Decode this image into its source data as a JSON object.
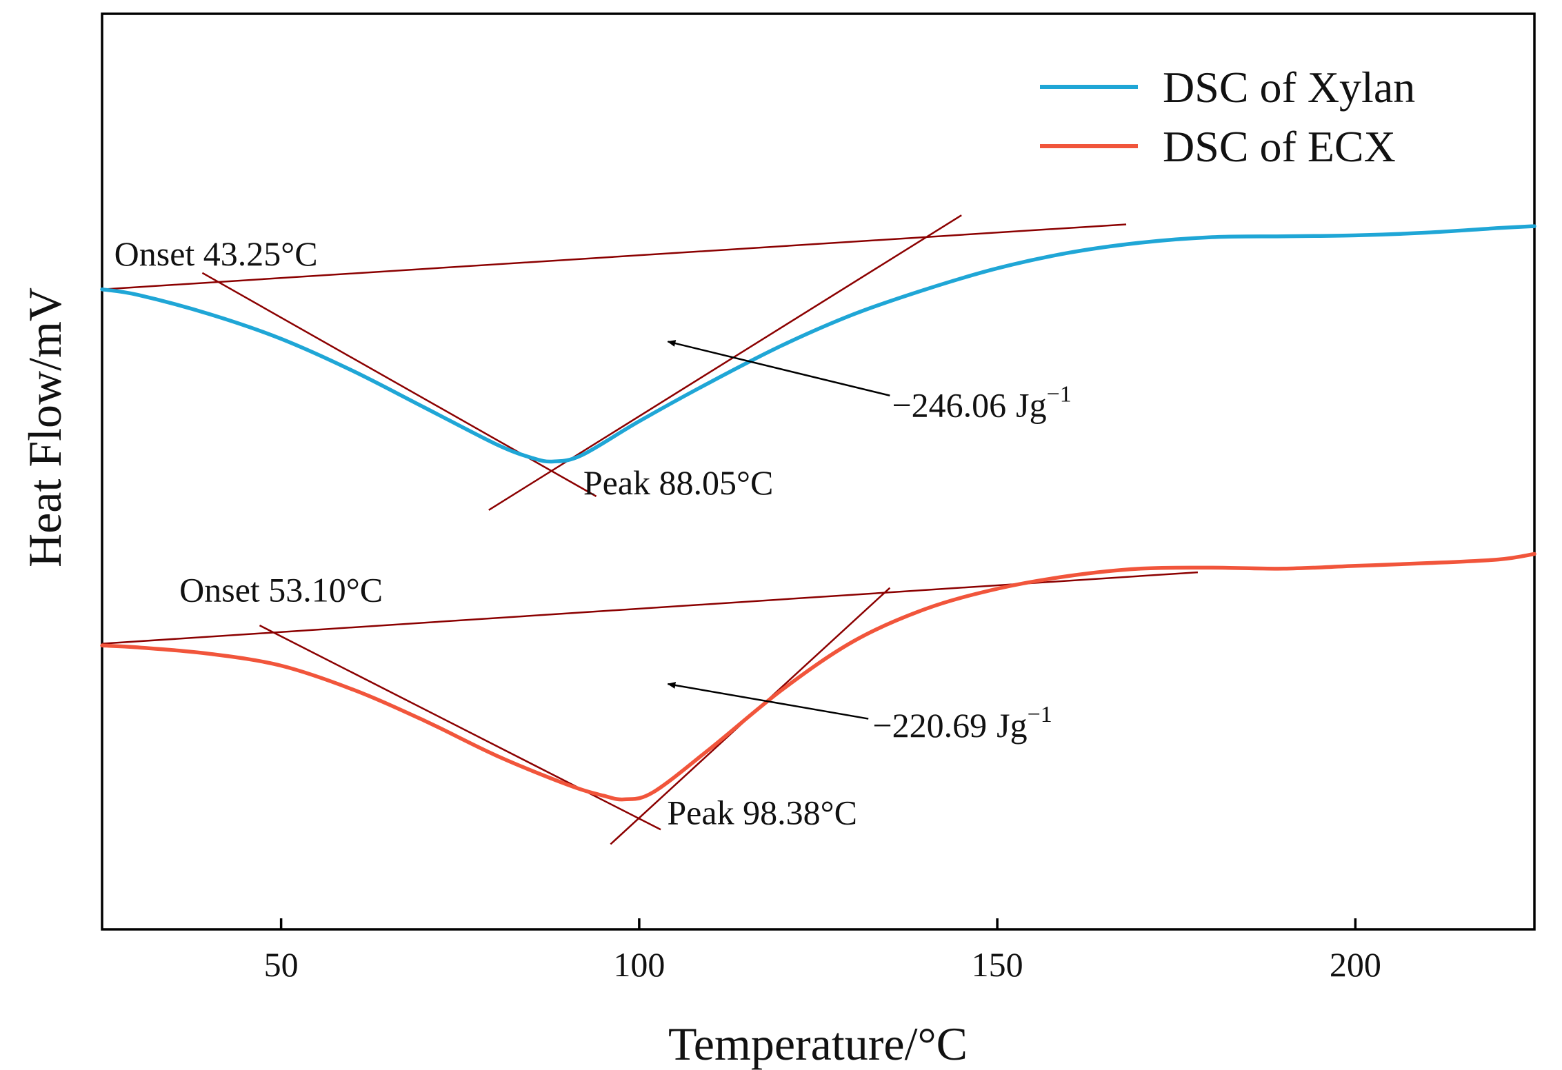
{
  "chart_data": {
    "type": "line",
    "title": "",
    "xlabel": "Temperature/°C",
    "ylabel": "Heat Flow/mV",
    "xlim": [
      25,
      225
    ],
    "ylim": [
      0,
      10
    ],
    "x_ticks": [
      {
        "value": 50,
        "label": "50"
      },
      {
        "value": 100,
        "label": "100"
      },
      {
        "value": 150,
        "label": "150"
      },
      {
        "value": 200,
        "label": "200"
      }
    ],
    "grid": false,
    "legend_position": "top-right",
    "series": [
      {
        "name": "DSC of Xylan",
        "color": "#1fa6d6",
        "x": [
          25,
          30,
          40,
          50,
          60,
          70,
          80,
          85,
          88,
          92,
          100,
          110,
          120,
          130,
          140,
          150,
          160,
          170,
          180,
          190,
          200,
          210,
          220,
          225
        ],
        "y": [
          6.99,
          6.93,
          6.72,
          6.45,
          6.1,
          5.7,
          5.3,
          5.15,
          5.11,
          5.18,
          5.55,
          5.98,
          6.38,
          6.72,
          6.99,
          7.22,
          7.39,
          7.5,
          7.56,
          7.57,
          7.58,
          7.61,
          7.66,
          7.68
        ]
      },
      {
        "name": "DSC of ECX",
        "color": "#f1553b",
        "x": [
          25,
          30,
          40,
          50,
          60,
          70,
          80,
          90,
          95,
          98,
          102,
          110,
          120,
          130,
          140,
          150,
          160,
          170,
          180,
          190,
          200,
          210,
          220,
          225
        ],
        "y": [
          3.1,
          3.08,
          3.01,
          2.88,
          2.62,
          2.28,
          1.9,
          1.58,
          1.46,
          1.42,
          1.5,
          1.98,
          2.62,
          3.15,
          3.5,
          3.72,
          3.86,
          3.94,
          3.95,
          3.94,
          3.97,
          4.0,
          4.04,
          4.1
        ]
      }
    ],
    "analysis_lines_color": "#8b0000",
    "analysis_lines": [
      {
        "name": "xylan-baseline",
        "x": [
          25,
          168
        ],
        "y": [
          6.99,
          7.7
        ]
      },
      {
        "name": "xylan-onset-tangent",
        "x": [
          39,
          94
        ],
        "y": [
          7.17,
          4.73
        ]
      },
      {
        "name": "xylan-peak-tangent",
        "x": [
          79,
          145
        ],
        "y": [
          4.58,
          7.8
        ]
      },
      {
        "name": "ecx-baseline",
        "x": [
          25,
          178
        ],
        "y": [
          3.12,
          3.9
        ]
      },
      {
        "name": "ecx-onset-tangent",
        "x": [
          47,
          103
        ],
        "y": [
          3.32,
          1.09
        ]
      },
      {
        "name": "ecx-peak-tangent",
        "x": [
          96,
          135
        ],
        "y": [
          0.93,
          3.73
        ]
      }
    ],
    "annotations": [
      {
        "name": "xylan-onset",
        "text": "Onset 43.25°C",
        "x": 26.7,
        "y": 7.25
      },
      {
        "name": "xylan-peak",
        "text": "Peak 88.05°C",
        "x": 92.2,
        "y": 4.75
      },
      {
        "name": "xylan-enthalpy",
        "value": "−246.06",
        "unit": "Jg",
        "exponent": "−1",
        "x": 135.3,
        "y": 5.6,
        "arrow_from": [
          135,
          5.83
        ],
        "arrow_to": [
          104,
          6.42
        ]
      },
      {
        "name": "ecx-onset",
        "text": "Onset 53.10°C",
        "x": 35.8,
        "y": 3.58
      },
      {
        "name": "ecx-peak",
        "text": "Peak 98.38°C",
        "x": 103.9,
        "y": 1.15
      },
      {
        "name": "ecx-enthalpy",
        "value": "−220.69",
        "unit": "Jg",
        "exponent": "−1",
        "x": 132.6,
        "y": 2.1,
        "arrow_from": [
          132,
          2.3
        ],
        "arrow_to": [
          104,
          2.68
        ]
      }
    ]
  }
}
